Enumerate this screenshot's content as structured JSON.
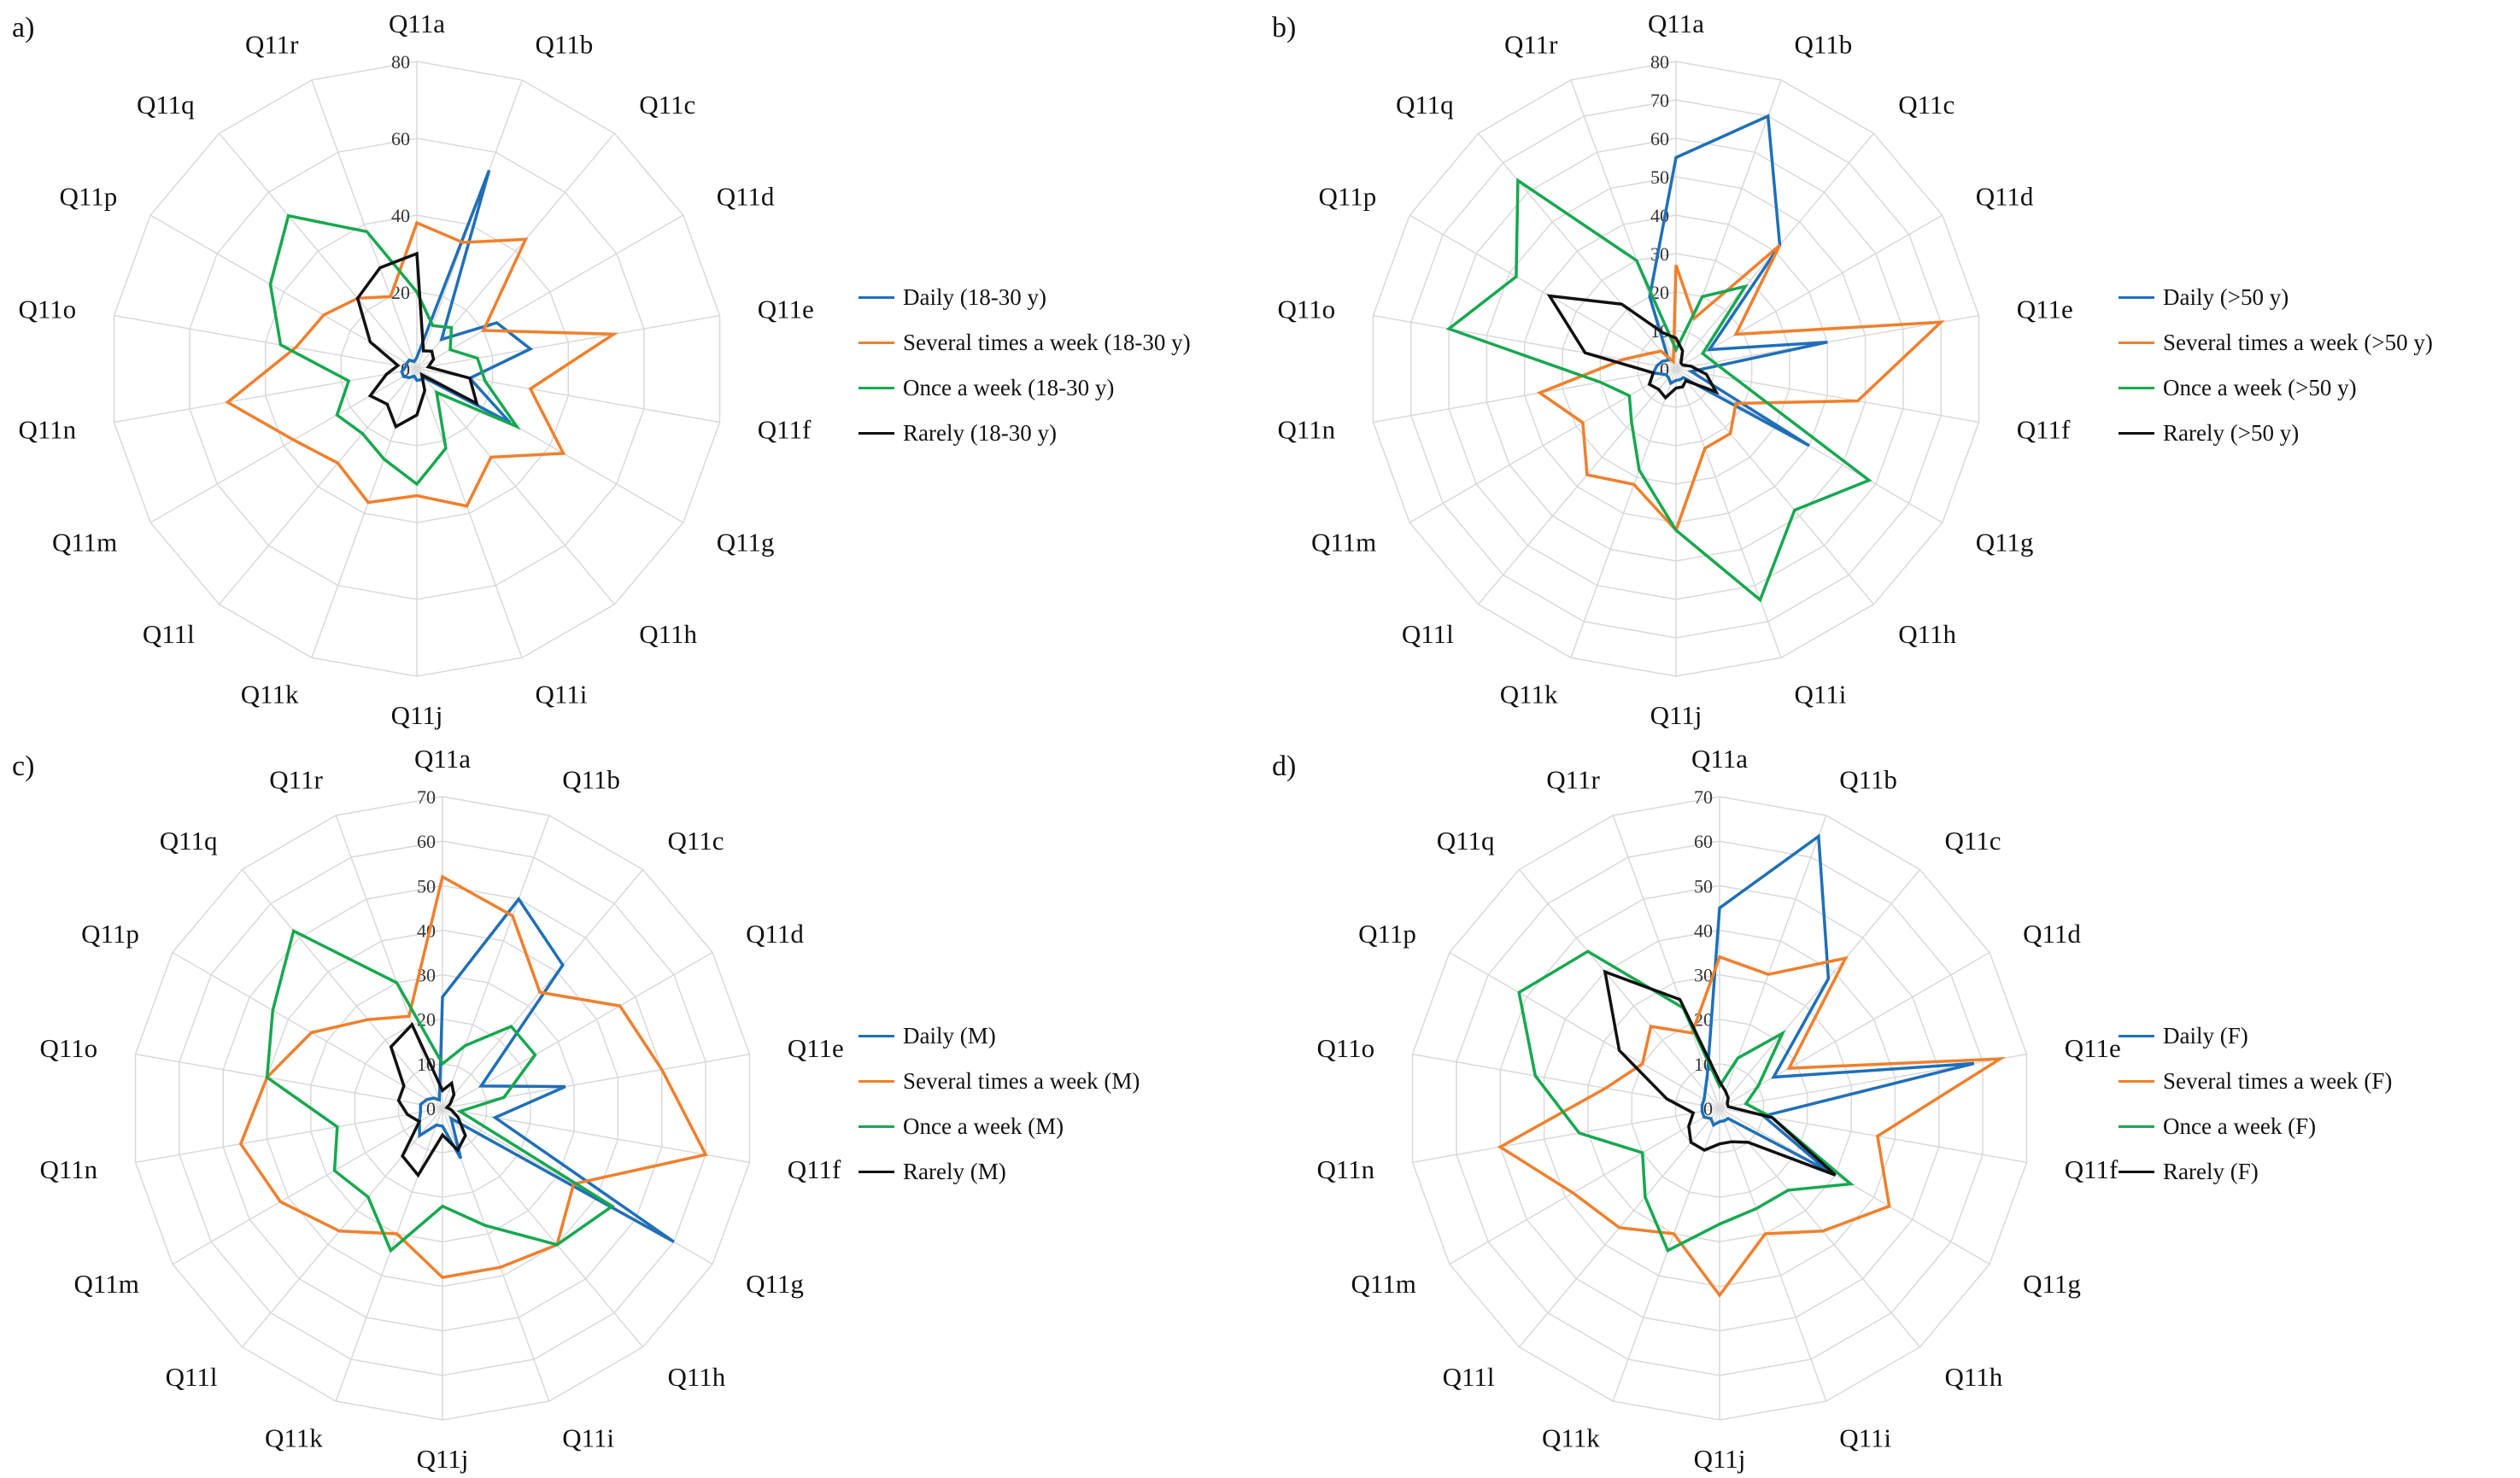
{
  "categories": [
    "Q11a",
    "Q11b",
    "Q11c",
    "Q11d",
    "Q11e",
    "Q11f",
    "Q11g",
    "Q11h",
    "Q11i",
    "Q11j",
    "Q11k",
    "Q11l",
    "Q11m",
    "Q11n",
    "Q11o",
    "Q11p",
    "Q11q",
    "Q11r"
  ],
  "series_colors": [
    "#1f6fb8",
    "#f07f2c",
    "#16a84f",
    "#111111"
  ],
  "chart_data": [
    {
      "panel": "a)",
      "type": "radar",
      "categories": [
        "Q11a",
        "Q11b",
        "Q11c",
        "Q11d",
        "Q11e",
        "Q11f",
        "Q11g",
        "Q11h",
        "Q11i",
        "Q11j",
        "Q11k",
        "Q11l",
        "Q11m",
        "Q11n",
        "Q11o",
        "Q11p",
        "Q11q",
        "Q11r"
      ],
      "rlim": [
        0,
        80
      ],
      "ticks": [
        "0",
        "20",
        "40",
        "60",
        "80"
      ],
      "tick_values": [
        0,
        20,
        40,
        60,
        80
      ],
      "grid": true,
      "series": [
        {
          "name": "Daily (18-30 y)",
          "color": "#1f6fb8",
          "values": [
            3,
            55,
            10,
            24,
            30,
            14,
            28,
            3,
            3,
            3,
            2,
            3,
            4,
            4,
            3,
            3,
            3,
            2
          ]
        },
        {
          "name": "Several times a week (18-30 y)",
          "color": "#f07f2c",
          "values": [
            38,
            35,
            44,
            20,
            52,
            30,
            44,
            30,
            38,
            33,
            37,
            32,
            37,
            50,
            32,
            28,
            24,
            20
          ]
        },
        {
          "name": "Once a week (18-30 y)",
          "color": "#16a84f",
          "values": [
            20,
            12,
            14,
            10,
            16,
            18,
            30,
            8,
            22,
            30,
            25,
            22,
            24,
            18,
            36,
            44,
            52,
            38
          ]
        },
        {
          "name": "Rarely (18-30 y)",
          "color": "#111111",
          "values": [
            30,
            5,
            6,
            5,
            3,
            14,
            18,
            2,
            6,
            12,
            16,
            12,
            14,
            8,
            5,
            14,
            24,
            28
          ]
        }
      ]
    },
    {
      "panel": "b)",
      "type": "radar",
      "categories": [
        "Q11a",
        "Q11b",
        "Q11c",
        "Q11d",
        "Q11e",
        "Q11f",
        "Q11g",
        "Q11h",
        "Q11i",
        "Q11j",
        "Q11k",
        "Q11l",
        "Q11m",
        "Q11n",
        "Q11o",
        "Q11p",
        "Q11q",
        "Q11r"
      ],
      "rlim": [
        0,
        80
      ],
      "ticks": [
        "0",
        "10",
        "20",
        "30",
        "40",
        "50",
        "60",
        "70",
        "80"
      ],
      "tick_values": [
        0,
        10,
        20,
        30,
        40,
        50,
        60,
        70,
        80
      ],
      "grid": true,
      "series": [
        {
          "name": "Daily (>50 y)",
          "color": "#1f6fb8",
          "values": [
            55,
            70,
            42,
            10,
            40,
            4,
            40,
            3,
            3,
            3,
            4,
            3,
            3,
            6,
            5,
            4,
            3,
            20
          ]
        },
        {
          "name": "Several times a week (>50 y)",
          "color": "#f07f2c",
          "values": [
            27,
            14,
            42,
            18,
            70,
            48,
            18,
            22,
            22,
            42,
            32,
            36,
            28,
            36,
            14,
            8,
            6,
            2
          ]
        },
        {
          "name": "Once a week (>50 y)",
          "color": "#16a84f",
          "values": [
            5,
            20,
            28,
            8,
            10,
            16,
            58,
            48,
            64,
            42,
            28,
            18,
            14,
            20,
            60,
            48,
            64,
            30
          ]
        },
        {
          "name": "Rarely (>50 y)",
          "color": "#111111",
          "values": [
            8,
            5,
            2,
            2,
            4,
            8,
            12,
            4,
            5,
            5,
            8,
            7,
            8,
            6,
            24,
            38,
            22,
            10
          ]
        }
      ]
    },
    {
      "panel": "c)",
      "type": "radar",
      "categories": [
        "Q11a",
        "Q11b",
        "Q11c",
        "Q11d",
        "Q11e",
        "Q11f",
        "Q11g",
        "Q11h",
        "Q11i",
        "Q11j",
        "Q11k",
        "Q11l",
        "Q11m",
        "Q11n",
        "Q11o",
        "Q11p",
        "Q11q",
        "Q11r"
      ],
      "rlim": [
        0,
        70
      ],
      "ticks": [
        "0",
        "10",
        "20",
        "30",
        "40",
        "50",
        "60",
        "70"
      ],
      "tick_values": [
        0,
        10,
        20,
        30,
        40,
        50,
        60,
        70
      ],
      "grid": true,
      "series": [
        {
          "name": "Daily (M)",
          "color": "#1f6fb8",
          "values": [
            25,
            50,
            42,
            10,
            28,
            12,
            60,
            3,
            12,
            4,
            4,
            8,
            6,
            5,
            5,
            4,
            3,
            2
          ]
        },
        {
          "name": "Several times a week (M)",
          "color": "#f07f2c",
          "values": [
            52,
            46,
            34,
            46,
            50,
            60,
            34,
            40,
            38,
            38,
            30,
            36,
            42,
            46,
            40,
            34,
            26,
            22
          ]
        },
        {
          "name": "Once a week (M)",
          "color": "#16a84f",
          "values": [
            10,
            15,
            24,
            24,
            14,
            4,
            44,
            40,
            28,
            22,
            34,
            26,
            28,
            24,
            40,
            44,
            52,
            30
          ]
        },
        {
          "name": "Rarely (M)",
          "color": "#111111",
          "values": [
            4,
            6,
            4,
            2,
            1,
            2,
            4,
            8,
            10,
            6,
            16,
            14,
            6,
            8,
            10,
            10,
            18,
            20
          ]
        }
      ]
    },
    {
      "panel": "d)",
      "type": "radar",
      "categories": [
        "Q11a",
        "Q11b",
        "Q11c",
        "Q11d",
        "Q11e",
        "Q11f",
        "Q11g",
        "Q11h",
        "Q11i",
        "Q11j",
        "Q11k",
        "Q11l",
        "Q11m",
        "Q11n",
        "Q11o",
        "Q11p",
        "Q11q",
        "Q11r"
      ],
      "rlim": [
        0,
        70
      ],
      "ticks": [
        "0",
        "10",
        "20",
        "30",
        "40",
        "50",
        "60",
        "70"
      ],
      "tick_values": [
        0,
        10,
        20,
        30,
        40,
        50,
        60,
        70
      ],
      "grid": true,
      "series": [
        {
          "name": "Daily (F)",
          "color": "#1f6fb8",
          "values": [
            45,
            65,
            38,
            14,
            58,
            10,
            28,
            3,
            3,
            3,
            4,
            3,
            4,
            4,
            4,
            4,
            5,
            8
          ]
        },
        {
          "name": "Several times a week (F)",
          "color": "#f07f2c",
          "values": [
            34,
            32,
            44,
            18,
            64,
            36,
            44,
            36,
            30,
            42,
            30,
            35,
            38,
            50,
            26,
            20,
            24,
            18
          ]
        },
        {
          "name": "Once a week (F)",
          "color": "#16a84f",
          "values": [
            5,
            12,
            22,
            10,
            6,
            12,
            34,
            24,
            24,
            26,
            34,
            26,
            20,
            32,
            42,
            52,
            46,
            24
          ]
        },
        {
          "name": "Rarely (F)",
          "color": "#111111",
          "values": [
            6,
            4,
            3,
            2,
            2,
            12,
            30,
            10,
            8,
            8,
            10,
            10,
            8,
            6,
            12,
            26,
            40,
            26
          ]
        }
      ]
    }
  ]
}
